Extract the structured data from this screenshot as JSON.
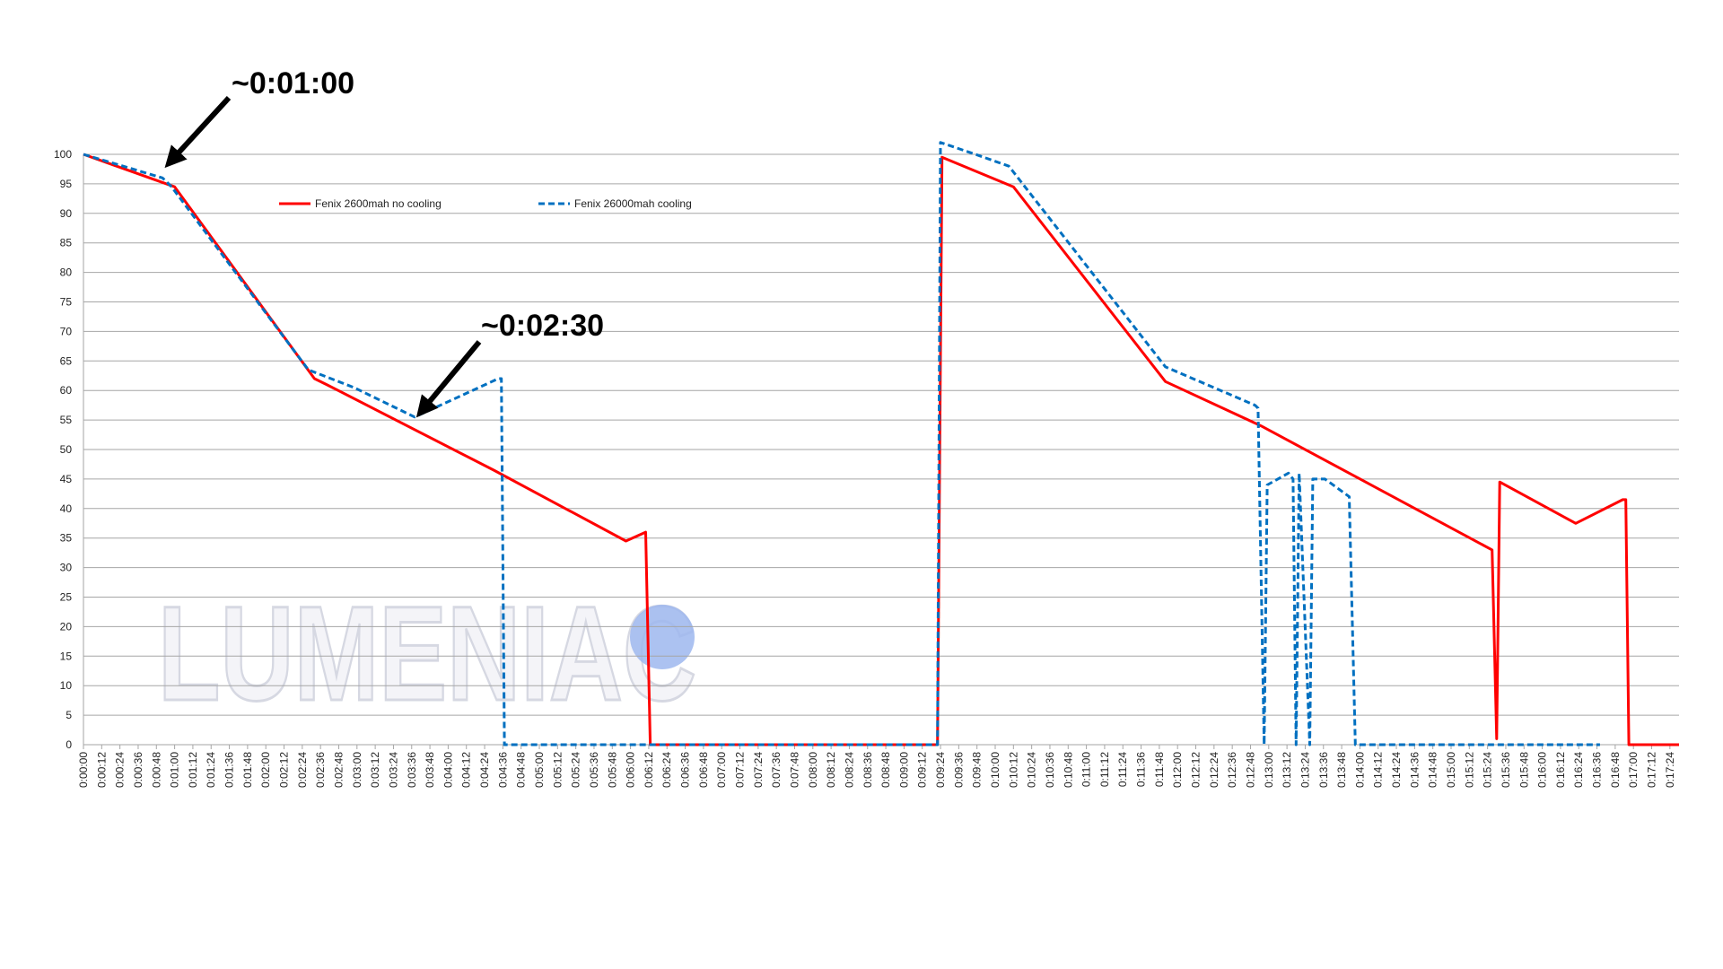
{
  "chart_data": {
    "type": "line",
    "annotations": [
      "~0:01:00",
      "~0:02:30"
    ],
    "watermark": "LUMENIAC",
    "legend": "top-left",
    "grid": true,
    "xlim": [
      0,
      1050
    ],
    "ylim": [
      0,
      100
    ],
    "yticks": [
      0,
      5,
      10,
      15,
      20,
      25,
      30,
      35,
      40,
      45,
      50,
      55,
      60,
      65,
      70,
      75,
      80,
      85,
      90,
      95,
      100
    ],
    "xticks": [
      {
        "value": 0,
        "label": "0:00:00"
      },
      {
        "value": 12,
        "label": "0:00:12"
      },
      {
        "value": 24,
        "label": "0:00:24"
      },
      {
        "value": 36,
        "label": "0:00:36"
      },
      {
        "value": 48,
        "label": "0:00:48"
      },
      {
        "value": 60,
        "label": "0:01:00"
      },
      {
        "value": 72,
        "label": "0:01:12"
      },
      {
        "value": 84,
        "label": "0:01:24"
      },
      {
        "value": 96,
        "label": "0:01:36"
      },
      {
        "value": 108,
        "label": "0:01:48"
      },
      {
        "value": 120,
        "label": "0:02:00"
      },
      {
        "value": 132,
        "label": "0:02:12"
      },
      {
        "value": 144,
        "label": "0:02:24"
      },
      {
        "value": 156,
        "label": "0:02:36"
      },
      {
        "value": 168,
        "label": "0:02:48"
      },
      {
        "value": 180,
        "label": "0:03:00"
      },
      {
        "value": 192,
        "label": "0:03:12"
      },
      {
        "value": 204,
        "label": "0:03:24"
      },
      {
        "value": 216,
        "label": "0:03:36"
      },
      {
        "value": 228,
        "label": "0:03:48"
      },
      {
        "value": 240,
        "label": "0:04:00"
      },
      {
        "value": 252,
        "label": "0:04:12"
      },
      {
        "value": 264,
        "label": "0:04:24"
      },
      {
        "value": 276,
        "label": "0:04:36"
      },
      {
        "value": 288,
        "label": "0:04:48"
      },
      {
        "value": 300,
        "label": "0:05:00"
      },
      {
        "value": 312,
        "label": "0:05:12"
      },
      {
        "value": 324,
        "label": "0:05:24"
      },
      {
        "value": 336,
        "label": "0:05:36"
      },
      {
        "value": 348,
        "label": "0:05:48"
      },
      {
        "value": 360,
        "label": "0:06:00"
      },
      {
        "value": 372,
        "label": "0:06:12"
      },
      {
        "value": 384,
        "label": "0:06:24"
      },
      {
        "value": 396,
        "label": "0:06:36"
      },
      {
        "value": 408,
        "label": "0:06:48"
      },
      {
        "value": 420,
        "label": "0:07:00"
      },
      {
        "value": 432,
        "label": "0:07:12"
      },
      {
        "value": 444,
        "label": "0:07:24"
      },
      {
        "value": 456,
        "label": "0:07:36"
      },
      {
        "value": 468,
        "label": "0:07:48"
      },
      {
        "value": 480,
        "label": "0:08:00"
      },
      {
        "value": 492,
        "label": "0:08:12"
      },
      {
        "value": 504,
        "label": "0:08:24"
      },
      {
        "value": 516,
        "label": "0:08:36"
      },
      {
        "value": 528,
        "label": "0:08:48"
      },
      {
        "value": 540,
        "label": "0:09:00"
      },
      {
        "value": 552,
        "label": "0:09:12"
      },
      {
        "value": 564,
        "label": "0:09:24"
      },
      {
        "value": 576,
        "label": "0:09:36"
      },
      {
        "value": 588,
        "label": "0:09:48"
      },
      {
        "value": 600,
        "label": "0:10:00"
      },
      {
        "value": 612,
        "label": "0:10:12"
      },
      {
        "value": 624,
        "label": "0:10:24"
      },
      {
        "value": 636,
        "label": "0:10:36"
      },
      {
        "value": 648,
        "label": "0:10:48"
      },
      {
        "value": 660,
        "label": "0:11:00"
      },
      {
        "value": 672,
        "label": "0:11:12"
      },
      {
        "value": 684,
        "label": "0:11:24"
      },
      {
        "value": 696,
        "label": "0:11:36"
      },
      {
        "value": 708,
        "label": "0:11:48"
      },
      {
        "value": 720,
        "label": "0:12:00"
      },
      {
        "value": 732,
        "label": "0:12:12"
      },
      {
        "value": 744,
        "label": "0:12:24"
      },
      {
        "value": 756,
        "label": "0:12:36"
      },
      {
        "value": 768,
        "label": "0:12:48"
      },
      {
        "value": 780,
        "label": "0:13:00"
      },
      {
        "value": 792,
        "label": "0:13:12"
      },
      {
        "value": 804,
        "label": "0:13:24"
      },
      {
        "value": 816,
        "label": "0:13:36"
      },
      {
        "value": 828,
        "label": "0:13:48"
      },
      {
        "value": 840,
        "label": "0:14:00"
      },
      {
        "value": 852,
        "label": "0:14:12"
      },
      {
        "value": 864,
        "label": "0:14:24"
      },
      {
        "value": 876,
        "label": "0:14:36"
      },
      {
        "value": 888,
        "label": "0:14:48"
      },
      {
        "value": 900,
        "label": "0:15:00"
      },
      {
        "value": 912,
        "label": "0:15:12"
      },
      {
        "value": 924,
        "label": "0:15:24"
      },
      {
        "value": 936,
        "label": "0:15:36"
      },
      {
        "value": 948,
        "label": "0:15:48"
      },
      {
        "value": 960,
        "label": "0:16:00"
      },
      {
        "value": 972,
        "label": "0:16:12"
      },
      {
        "value": 984,
        "label": "0:16:24"
      },
      {
        "value": 996,
        "label": "0:16:36"
      },
      {
        "value": 1008,
        "label": "0:16:48"
      },
      {
        "value": 1020,
        "label": "0:17:00"
      },
      {
        "value": 1032,
        "label": "0:17:12"
      },
      {
        "value": 1044,
        "label": "0:17:24"
      }
    ],
    "series": [
      {
        "name": "Fenix 2600mah no cooling",
        "color": "#ff0000",
        "dash": false,
        "x": [
          0,
          60,
          152,
          160,
          270,
          357,
          370,
          373,
          562,
          565,
          612,
          712,
          775,
          927,
          930,
          932,
          982,
          1013,
          1015,
          1017,
          1050
        ],
        "values": [
          100,
          94.5,
          62,
          61,
          46.5,
          34.5,
          36,
          0,
          0,
          99.5,
          94.5,
          61.5,
          54,
          33,
          1,
          44.5,
          37.5,
          41.5,
          41.5,
          0,
          0
        ]
      },
      {
        "name": "Fenix 26000mah cooling",
        "color": "#0070c0",
        "dash": true,
        "x": [
          0,
          52,
          58,
          148,
          178,
          218,
          273,
          275,
          277,
          562,
          564,
          587,
          609,
          712,
          771,
          773,
          777,
          779,
          793,
          796,
          798,
          800,
          807,
          809,
          817,
          833,
          837,
          998
        ],
        "values": [
          100,
          96,
          94.5,
          63.5,
          60.5,
          55.5,
          62,
          62,
          0,
          0,
          102,
          100,
          98,
          64,
          57.5,
          57,
          0,
          44,
          46,
          45,
          0,
          46,
          0,
          45,
          45,
          42,
          0,
          0
        ]
      }
    ]
  }
}
